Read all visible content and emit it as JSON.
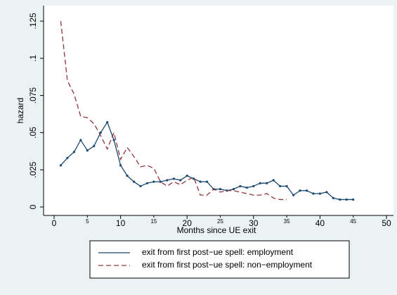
{
  "chart_data": {
    "type": "line",
    "x_label": "Months since UE exit",
    "y_label": "hazard",
    "xlim": [
      0,
      50
    ],
    "xticks": [
      0,
      10,
      20,
      30,
      40,
      50
    ],
    "xticks_minor": [
      5,
      15,
      25,
      35,
      45
    ],
    "ylim": [
      0,
      0.125
    ],
    "yticks": [
      0,
      {
        "value": 0.025,
        "label": ".025"
      },
      {
        "value": 0.05,
        "label": ".05"
      },
      {
        "value": 0.075,
        "label": ".075"
      },
      {
        "value": 0.1,
        "label": ".1"
      },
      {
        "value": 0.125,
        "label": ".125"
      }
    ],
    "grid": false,
    "legend": "bottom",
    "series": [
      {
        "name": "exit from first post−ue spell: employment",
        "color": "#1a476f",
        "dash": false,
        "markers": true,
        "x": [
          1,
          2,
          3,
          4,
          5,
          6,
          7,
          8,
          9,
          10,
          11,
          12,
          13,
          14,
          15,
          16,
          17,
          18,
          19,
          20,
          21,
          22,
          23,
          24,
          25,
          26,
          27,
          28,
          29,
          30,
          31,
          32,
          33,
          34,
          35,
          36,
          37,
          38,
          39,
          40,
          41,
          42,
          43,
          44,
          45
        ],
        "values": [
          0.028,
          0.033,
          0.037,
          0.045,
          0.038,
          0.041,
          0.05,
          0.057,
          0.045,
          0.028,
          0.021,
          0.017,
          0.014,
          0.016,
          0.017,
          0.017,
          0.018,
          0.019,
          0.018,
          0.021,
          0.019,
          0.017,
          0.017,
          0.012,
          0.012,
          0.011,
          0.012,
          0.014,
          0.013,
          0.014,
          0.016,
          0.016,
          0.018,
          0.014,
          0.014,
          0.008,
          0.011,
          0.011,
          0.009,
          0.009,
          0.01,
          0.006,
          0.005,
          0.005,
          0.005
        ]
      },
      {
        "name": "exit from first post−ue spell: non−employment",
        "color": "#90353b",
        "dash": true,
        "markers": false,
        "x": [
          1,
          2,
          3,
          4,
          5,
          6,
          7,
          8,
          9,
          10,
          11,
          12,
          13,
          14,
          15,
          16,
          17,
          18,
          19,
          20,
          21,
          22,
          23,
          24,
          25,
          26,
          27,
          28,
          29,
          30,
          31,
          32,
          33,
          34,
          35
        ],
        "values": [
          0.125,
          0.085,
          0.076,
          0.061,
          0.06,
          0.056,
          0.048,
          0.039,
          0.05,
          0.032,
          0.04,
          0.034,
          0.027,
          0.028,
          0.026,
          0.017,
          0.014,
          0.017,
          0.015,
          0.018,
          0.02,
          0.008,
          0.008,
          0.012,
          0.01,
          0.011,
          0.011,
          0.01,
          0.009,
          0.008,
          0.008,
          0.009,
          0.006,
          0.005,
          0.005
        ]
      }
    ]
  }
}
